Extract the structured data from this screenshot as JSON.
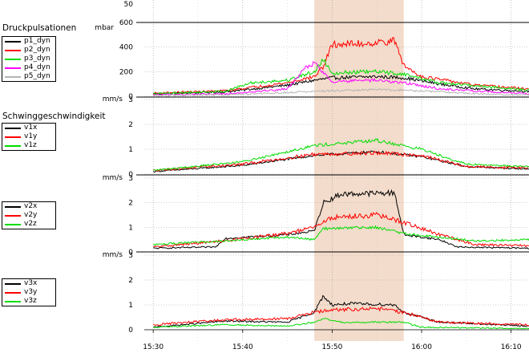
{
  "chart_data": {
    "type": "line",
    "x_tick_labels": [
      "15:30",
      "15:40",
      "15:50",
      "16:00",
      "16:10"
    ],
    "x_range": [
      "15:29",
      "16:12"
    ],
    "highlight_range": [
      "15:48",
      "15:58"
    ],
    "highlight_color": "#f3dccb",
    "grid": true,
    "panels": [
      {
        "title": "Druckpulsationen",
        "unit": "mbar",
        "ylim": [
          0,
          600
        ],
        "y_tick_labels": [
          "0",
          "200",
          "400",
          "600"
        ],
        "extra_tick_label": "50",
        "series": [
          {
            "name": "p1_dyn",
            "color": "#000000",
            "values": [
              {
                "x": "15:30",
                "y": 20
              },
              {
                "x": "15:38",
                "y": 35
              },
              {
                "x": "15:45",
                "y": 90
              },
              {
                "x": "15:48",
                "y": 130
              },
              {
                "x": "15:50",
                "y": 150
              },
              {
                "x": "15:55",
                "y": 160
              },
              {
                "x": "15:58",
                "y": 150
              },
              {
                "x": "16:02",
                "y": 100
              },
              {
                "x": "16:06",
                "y": 60
              },
              {
                "x": "16:12",
                "y": 40
              }
            ]
          },
          {
            "name": "p2_dyn",
            "color": "#ff0000",
            "values": [
              {
                "x": "15:30",
                "y": 25
              },
              {
                "x": "15:38",
                "y": 45
              },
              {
                "x": "15:45",
                "y": 110
              },
              {
                "x": "15:48",
                "y": 160
              },
              {
                "x": "15:49",
                "y": 240
              },
              {
                "x": "15:50",
                "y": 420
              },
              {
                "x": "15:54",
                "y": 430
              },
              {
                "x": "15:57",
                "y": 450
              },
              {
                "x": "15:58",
                "y": 250
              },
              {
                "x": "16:00",
                "y": 160
              },
              {
                "x": "16:06",
                "y": 90
              },
              {
                "x": "16:12",
                "y": 60
              }
            ]
          },
          {
            "name": "p3_dyn",
            "color": "#00dd00",
            "values": [
              {
                "x": "15:30",
                "y": 20
              },
              {
                "x": "15:38",
                "y": 40
              },
              {
                "x": "15:41",
                "y": 110
              },
              {
                "x": "15:45",
                "y": 130
              },
              {
                "x": "15:48",
                "y": 200
              },
              {
                "x": "15:49",
                "y": 300
              },
              {
                "x": "15:50",
                "y": 190
              },
              {
                "x": "15:55",
                "y": 200
              },
              {
                "x": "15:58",
                "y": 180
              },
              {
                "x": "16:02",
                "y": 110
              },
              {
                "x": "16:12",
                "y": 50
              }
            ]
          },
          {
            "name": "p4_dyn",
            "color": "#ff00ff",
            "values": [
              {
                "x": "15:30",
                "y": 10
              },
              {
                "x": "15:38",
                "y": 20
              },
              {
                "x": "15:45",
                "y": 60
              },
              {
                "x": "15:47",
                "y": 230
              },
              {
                "x": "15:48",
                "y": 270
              },
              {
                "x": "15:50",
                "y": 120
              },
              {
                "x": "15:55",
                "y": 130
              },
              {
                "x": "15:58",
                "y": 110
              },
              {
                "x": "16:02",
                "y": 60
              },
              {
                "x": "16:12",
                "y": 20
              }
            ]
          },
          {
            "name": "p5_dyn",
            "color": "#b4b4b4",
            "values": [
              {
                "x": "15:30",
                "y": 5
              },
              {
                "x": "15:40",
                "y": 15
              },
              {
                "x": "15:48",
                "y": 40
              },
              {
                "x": "15:55",
                "y": 55
              },
              {
                "x": "16:00",
                "y": 45
              },
              {
                "x": "16:06",
                "y": 20
              },
              {
                "x": "16:12",
                "y": 10
              }
            ]
          }
        ]
      },
      {
        "title": "Schwinggeschwindigkeit",
        "unit": "mm/s",
        "ylim": [
          0,
          3
        ],
        "y_tick_labels": [
          "0",
          "1",
          "2",
          "3"
        ],
        "series": [
          {
            "name": "v1x",
            "color": "#000000",
            "values": [
              {
                "x": "15:30",
                "y": 0.1
              },
              {
                "x": "15:40",
                "y": 0.35
              },
              {
                "x": "15:48",
                "y": 0.75
              },
              {
                "x": "15:55",
                "y": 0.9
              },
              {
                "x": "16:00",
                "y": 0.7
              },
              {
                "x": "16:05",
                "y": 0.3
              },
              {
                "x": "16:12",
                "y": 0.2
              }
            ]
          },
          {
            "name": "v1y",
            "color": "#ff0000",
            "values": [
              {
                "x": "15:30",
                "y": 0.15
              },
              {
                "x": "15:40",
                "y": 0.4
              },
              {
                "x": "15:48",
                "y": 0.8
              },
              {
                "x": "15:55",
                "y": 0.85
              },
              {
                "x": "16:00",
                "y": 0.75
              },
              {
                "x": "16:05",
                "y": 0.3
              },
              {
                "x": "16:12",
                "y": 0.25
              }
            ]
          },
          {
            "name": "v1z",
            "color": "#00dd00",
            "values": [
              {
                "x": "15:30",
                "y": 0.15
              },
              {
                "x": "15:40",
                "y": 0.5
              },
              {
                "x": "15:48",
                "y": 1.15
              },
              {
                "x": "15:55",
                "y": 1.35
              },
              {
                "x": "16:00",
                "y": 1.0
              },
              {
                "x": "16:05",
                "y": 0.4
              },
              {
                "x": "16:12",
                "y": 0.3
              }
            ]
          }
        ]
      },
      {
        "title": "",
        "unit": "mm/s",
        "ylim": [
          0,
          3
        ],
        "y_tick_labels": [
          "0",
          "1",
          "2",
          "3"
        ],
        "series": [
          {
            "name": "v2x",
            "color": "#000000",
            "values": [
              {
                "x": "15:30",
                "y": 0.15
              },
              {
                "x": "15:37",
                "y": 0.2
              },
              {
                "x": "15:38",
                "y": 0.55
              },
              {
                "x": "15:45",
                "y": 0.7
              },
              {
                "x": "15:48",
                "y": 0.85
              },
              {
                "x": "15:49",
                "y": 2.0
              },
              {
                "x": "15:51",
                "y": 2.35
              },
              {
                "x": "15:57",
                "y": 2.4
              },
              {
                "x": "15:58",
                "y": 0.7
              },
              {
                "x": "16:02",
                "y": 0.5
              },
              {
                "x": "16:04",
                "y": 0.2
              },
              {
                "x": "16:12",
                "y": 0.15
              }
            ]
          },
          {
            "name": "v2y",
            "color": "#ff0000",
            "values": [
              {
                "x": "15:30",
                "y": 0.2
              },
              {
                "x": "15:38",
                "y": 0.45
              },
              {
                "x": "15:45",
                "y": 0.75
              },
              {
                "x": "15:48",
                "y": 1.0
              },
              {
                "x": "15:50",
                "y": 1.4
              },
              {
                "x": "15:55",
                "y": 1.5
              },
              {
                "x": "15:58",
                "y": 1.2
              },
              {
                "x": "16:02",
                "y": 0.7
              },
              {
                "x": "16:06",
                "y": 0.3
              },
              {
                "x": "16:12",
                "y": 0.25
              }
            ]
          },
          {
            "name": "v2z",
            "color": "#00dd00",
            "values": [
              {
                "x": "15:30",
                "y": 0.3
              },
              {
                "x": "15:38",
                "y": 0.45
              },
              {
                "x": "15:45",
                "y": 0.6
              },
              {
                "x": "15:48",
                "y": 0.5
              },
              {
                "x": "15:49",
                "y": 0.95
              },
              {
                "x": "15:55",
                "y": 1.0
              },
              {
                "x": "15:58",
                "y": 0.75
              },
              {
                "x": "16:02",
                "y": 0.6
              },
              {
                "x": "16:06",
                "y": 0.45
              },
              {
                "x": "16:12",
                "y": 0.5
              }
            ]
          }
        ]
      },
      {
        "title": "",
        "unit": "mm/s",
        "ylim": [
          0,
          3
        ],
        "y_tick_labels": [
          "0",
          "1",
          "2",
          "3"
        ],
        "series": [
          {
            "name": "v3x",
            "color": "#000000",
            "values": [
              {
                "x": "15:30",
                "y": 0.1
              },
              {
                "x": "15:38",
                "y": 0.35
              },
              {
                "x": "15:45",
                "y": 0.3
              },
              {
                "x": "15:48",
                "y": 0.7
              },
              {
                "x": "15:49",
                "y": 1.35
              },
              {
                "x": "15:50",
                "y": 1.0
              },
              {
                "x": "15:52",
                "y": 1.05
              },
              {
                "x": "15:57",
                "y": 1.0
              },
              {
                "x": "15:58",
                "y": 0.7
              },
              {
                "x": "16:02",
                "y": 0.3
              },
              {
                "x": "16:12",
                "y": 0.15
              }
            ]
          },
          {
            "name": "v3y",
            "color": "#ff0000",
            "values": [
              {
                "x": "15:30",
                "y": 0.2
              },
              {
                "x": "15:38",
                "y": 0.4
              },
              {
                "x": "15:45",
                "y": 0.45
              },
              {
                "x": "15:48",
                "y": 0.7
              },
              {
                "x": "15:50",
                "y": 0.8
              },
              {
                "x": "15:55",
                "y": 0.85
              },
              {
                "x": "15:58",
                "y": 0.7
              },
              {
                "x": "16:02",
                "y": 0.3
              },
              {
                "x": "16:12",
                "y": 0.2
              }
            ]
          },
          {
            "name": "v3z",
            "color": "#00dd00",
            "values": [
              {
                "x": "15:30",
                "y": 0.1
              },
              {
                "x": "15:38",
                "y": 0.2
              },
              {
                "x": "15:45",
                "y": 0.15
              },
              {
                "x": "15:48",
                "y": 0.3
              },
              {
                "x": "15:49",
                "y": 0.45
              },
              {
                "x": "15:51",
                "y": 0.3
              },
              {
                "x": "15:58",
                "y": 0.3
              },
              {
                "x": "16:00",
                "y": 0.1
              },
              {
                "x": "16:12",
                "y": 0.05
              }
            ]
          }
        ]
      }
    ]
  }
}
